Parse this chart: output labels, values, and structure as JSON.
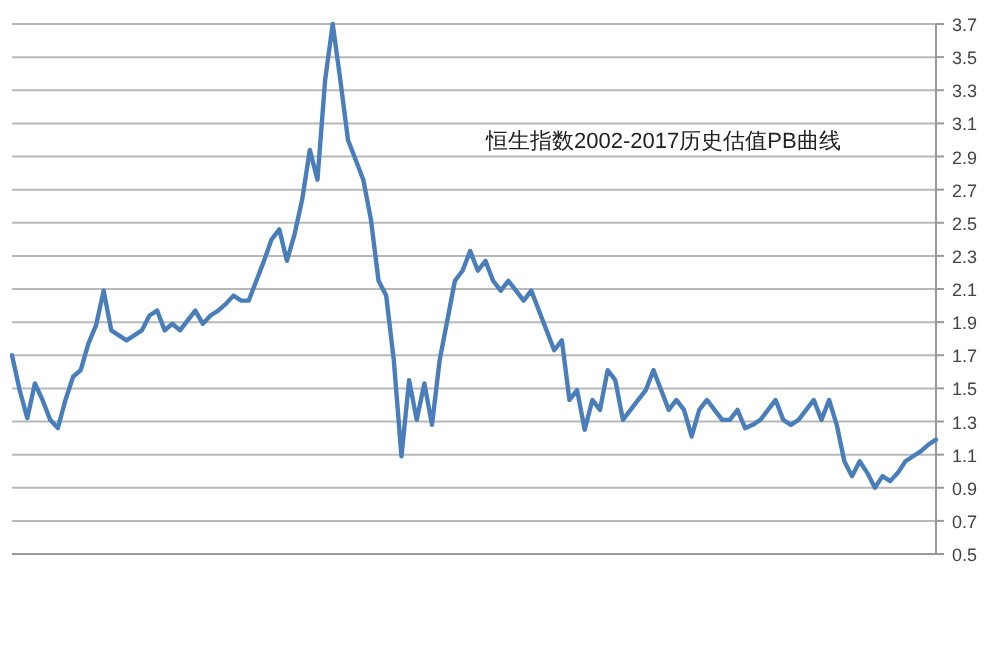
{
  "chart_data": {
    "type": "line",
    "title": "恒生指数2002-2017历史估值PB曲线",
    "categories": [
      null,
      null,
      null,
      null,
      null,
      null,
      null,
      null,
      null,
      null,
      null,
      null,
      null,
      null,
      null,
      null,
      null,
      null,
      null,
      null,
      null,
      null,
      null,
      null,
      null,
      null,
      null,
      null,
      null,
      null,
      null,
      null,
      null,
      null,
      null,
      null,
      null,
      null,
      null,
      null,
      null,
      null,
      null,
      null,
      null,
      null,
      null,
      null,
      null,
      null,
      null,
      null,
      null,
      null,
      null,
      null,
      null,
      null,
      null,
      null,
      null,
      null,
      null,
      null,
      null,
      null,
      null,
      null,
      null,
      null,
      null,
      null,
      null,
      null,
      null,
      null,
      null,
      null,
      null,
      null,
      null,
      null,
      null,
      null,
      null,
      null,
      null,
      null,
      null,
      null,
      null,
      null,
      null,
      null,
      null,
      null,
      null,
      null,
      null,
      null,
      null,
      null,
      null,
      null,
      null,
      null,
      null,
      null,
      null,
      null,
      null,
      null,
      null,
      null,
      null,
      null,
      null,
      null,
      null,
      null,
      null,
      null
    ],
    "series": [
      {
        "color": "#4a7ebb",
        "values": [
          1.7,
          1.49,
          1.32,
          1.53,
          1.43,
          1.31,
          1.26,
          1.43,
          1.57,
          1.61,
          1.77,
          1.88,
          2.09,
          1.85,
          1.82,
          1.79,
          1.82,
          1.85,
          1.94,
          1.97,
          1.85,
          1.89,
          1.85,
          1.91,
          1.97,
          1.89,
          1.94,
          1.97,
          2.01,
          2.06,
          2.03,
          2.03,
          2.15,
          2.27,
          2.4,
          2.46,
          2.27,
          2.43,
          2.64,
          2.94,
          2.76,
          3.36,
          3.7,
          3.36,
          3.0,
          2.88,
          2.76,
          2.52,
          2.15,
          2.06,
          1.67,
          1.09,
          1.55,
          1.31,
          1.53,
          1.28,
          1.67,
          1.91,
          2.15,
          2.21,
          2.33,
          2.21,
          2.27,
          2.15,
          2.09,
          2.15,
          2.09,
          2.03,
          2.09,
          1.97,
          1.85,
          1.73,
          1.79,
          1.43,
          1.49,
          1.25,
          1.43,
          1.37,
          1.61,
          1.55,
          1.31,
          1.37,
          1.43,
          1.49,
          1.61,
          1.49,
          1.37,
          1.43,
          1.37,
          1.21,
          1.37,
          1.43,
          1.37,
          1.31,
          1.31,
          1.37,
          1.26,
          1.28,
          1.31,
          1.37,
          1.43,
          1.31,
          1.28,
          1.31,
          1.37,
          1.43,
          1.31,
          1.43,
          1.28,
          1.06,
          0.97,
          1.06,
          0.99,
          0.9,
          0.97,
          0.94,
          0.99,
          1.06,
          1.09,
          1.12,
          1.16,
          1.19
        ]
      }
    ],
    "ylim": [
      0.5,
      3.7
    ],
    "yticks": [
      0.5,
      0.7,
      0.9,
      1.1,
      1.3,
      1.5,
      1.7,
      1.9,
      2.1,
      2.3,
      2.5,
      2.7,
      2.9,
      3.1,
      3.3,
      3.5,
      3.7
    ],
    "grid": "y",
    "marker": "none",
    "line_style": "solid"
  }
}
